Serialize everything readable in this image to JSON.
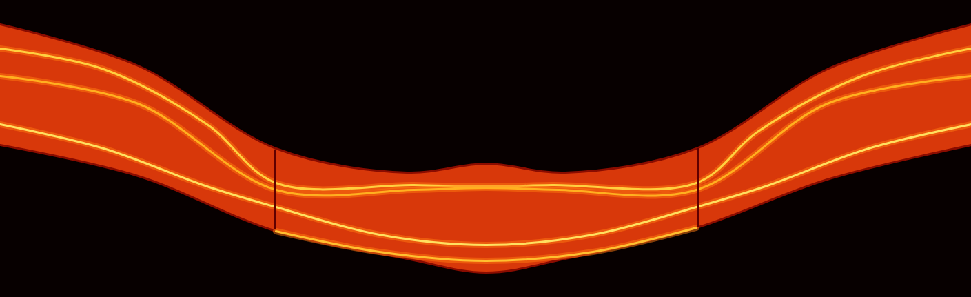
{
  "chart_data": {
    "type": "band",
    "xlim": [
      0,
      1409
    ],
    "ylim": [
      431,
      0
    ],
    "tick_labels": false,
    "grid": false,
    "band": {
      "x": [
        0,
        200,
        400,
        590,
        705,
        820,
        1010,
        1200,
        1409
      ],
      "top": [
        35,
        95,
        215,
        250,
        237,
        250,
        215,
        100,
        35
      ],
      "bottom": [
        210,
        255,
        335,
        375,
        395,
        375,
        330,
        260,
        210
      ],
      "color": "#d8380a"
    },
    "streaks": [
      {
        "x": [
          0,
          150,
          300,
          400,
          600,
          705,
          800,
          1010,
          1100,
          1250,
          1409
        ],
        "y": [
          70,
          100,
          180,
          265,
          268,
          270,
          268,
          265,
          190,
          110,
          70
        ],
        "color": "#ffd040"
      },
      {
        "x": [
          0,
          200,
          400,
          600,
          705,
          810,
          1010,
          1200,
          1409
        ],
        "y": [
          110,
          150,
          275,
          275,
          272,
          275,
          275,
          150,
          110
        ],
        "color": "#ffb020"
      },
      {
        "x": [
          0,
          150,
          300,
          400,
          550,
          705,
          860,
          1010,
          1110,
          1260,
          1409
        ],
        "y": [
          180,
          215,
          270,
          300,
          340,
          355,
          340,
          300,
          270,
          215,
          180
        ],
        "color": "#ffe060"
      },
      {
        "x": [
          400,
          550,
          705,
          860,
          1010
        ],
        "y": [
          335,
          365,
          378,
          365,
          330
        ],
        "color": "#ffc030"
      }
    ],
    "dividers": {
      "x": [
        398,
        1012
      ],
      "y1": [
        218,
        215
      ],
      "y2": [
        332,
        330
      ],
      "color": "#600000"
    }
  }
}
